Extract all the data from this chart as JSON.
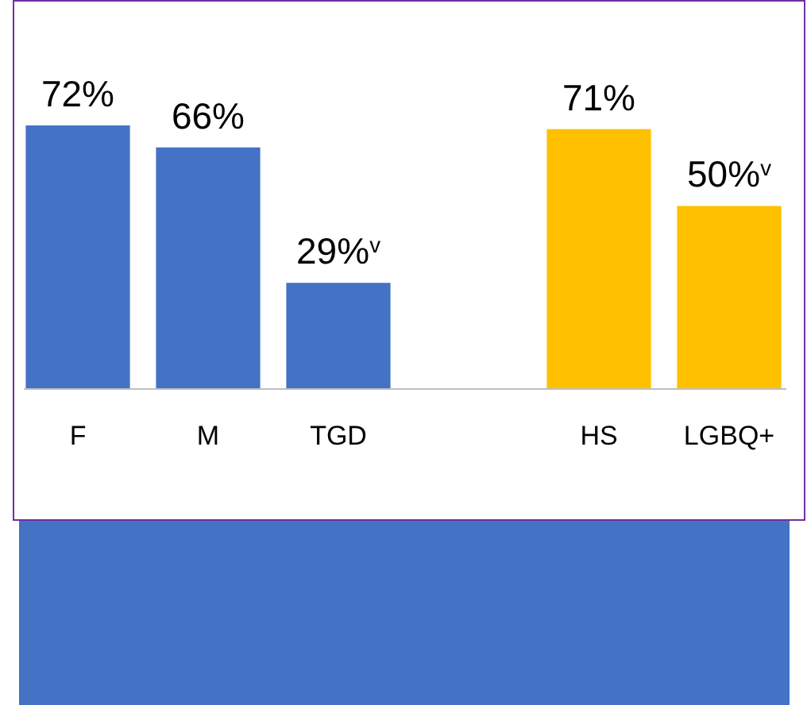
{
  "chart_data": {
    "type": "bar",
    "categories": [
      "F",
      "M",
      "TGD",
      null,
      "HS",
      "LGBQ+"
    ],
    "values": [
      72,
      66,
      29,
      null,
      71,
      50
    ],
    "colors": [
      "#4472c4",
      "#4472c4",
      "#4472c4",
      null,
      "#ffc000",
      "#ffc000"
    ],
    "value_labels": [
      "72%",
      "66%",
      "29%$^{v}$",
      null,
      "71%",
      "50%$^{v}$"
    ],
    "relative": false
  }
}
